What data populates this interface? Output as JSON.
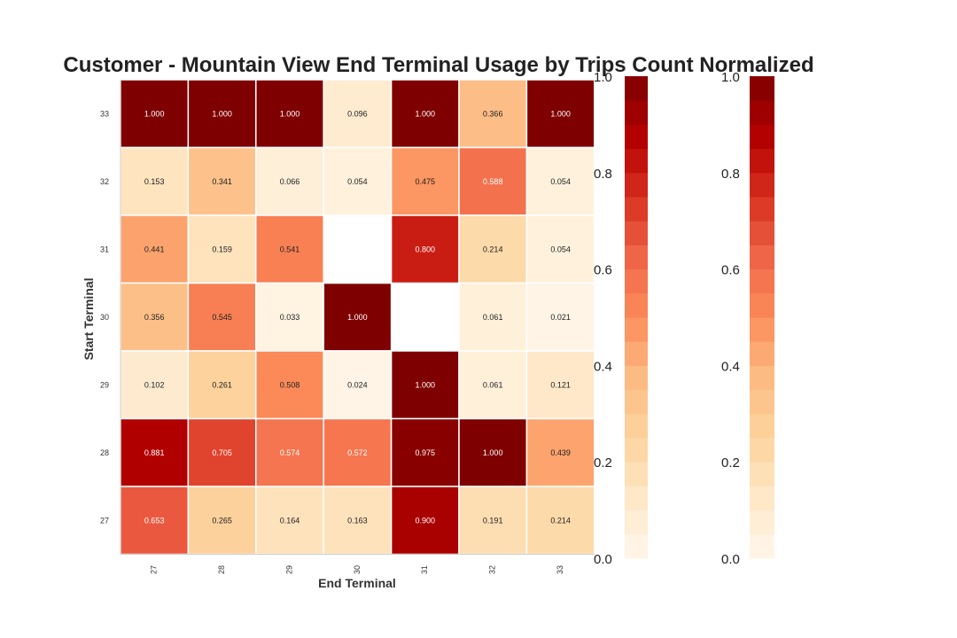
{
  "chart_data": {
    "type": "heatmap",
    "title": "Customer - Mountain View End Terminal Usage by Trips Count Normalized",
    "xlabel": "End Terminal",
    "ylabel": "Start Terminal",
    "x_categories": [
      "27",
      "28",
      "29",
      "30",
      "31",
      "32",
      "33"
    ],
    "y_categories_top_to_bottom": [
      "33",
      "32",
      "31",
      "30",
      "29",
      "28",
      "27"
    ],
    "values": [
      [
        1.0,
        1.0,
        1.0,
        0.096,
        1.0,
        0.366,
        1.0
      ],
      [
        0.153,
        0.341,
        0.066,
        0.054,
        0.475,
        0.588,
        0.054
      ],
      [
        0.441,
        0.159,
        0.541,
        null,
        0.8,
        0.214,
        0.054
      ],
      [
        0.356,
        0.545,
        0.033,
        1.0,
        null,
        0.061,
        0.021
      ],
      [
        0.102,
        0.261,
        0.508,
        0.024,
        1.0,
        0.061,
        0.121
      ],
      [
        0.881,
        0.705,
        0.574,
        0.572,
        0.975,
        1.0,
        0.439
      ],
      [
        0.653,
        0.265,
        0.164,
        0.163,
        0.9,
        0.191,
        0.214
      ]
    ],
    "value_format": "3 decimals",
    "colormap": "OrRd",
    "vmin": 0.0,
    "vmax": 1.0,
    "colorbars": [
      {
        "ticks": [
          "0.0",
          "0.2",
          "0.4",
          "0.6",
          "0.8",
          "1.0"
        ],
        "levels": 20
      },
      {
        "ticks": [
          "0.0",
          "0.2",
          "0.4",
          "0.6",
          "0.8",
          "1.0"
        ],
        "levels": 20
      }
    ],
    "colors": {
      "cmap_stops": [
        "#fff7ec",
        "#fee8c8",
        "#fdd49e",
        "#fdbb84",
        "#fc8d59",
        "#ef6548",
        "#d7301f",
        "#b30000",
        "#7f0000"
      ],
      "text_dark": "#222222",
      "text_light": "#ffffff",
      "cell_border": "#ffffff"
    }
  }
}
